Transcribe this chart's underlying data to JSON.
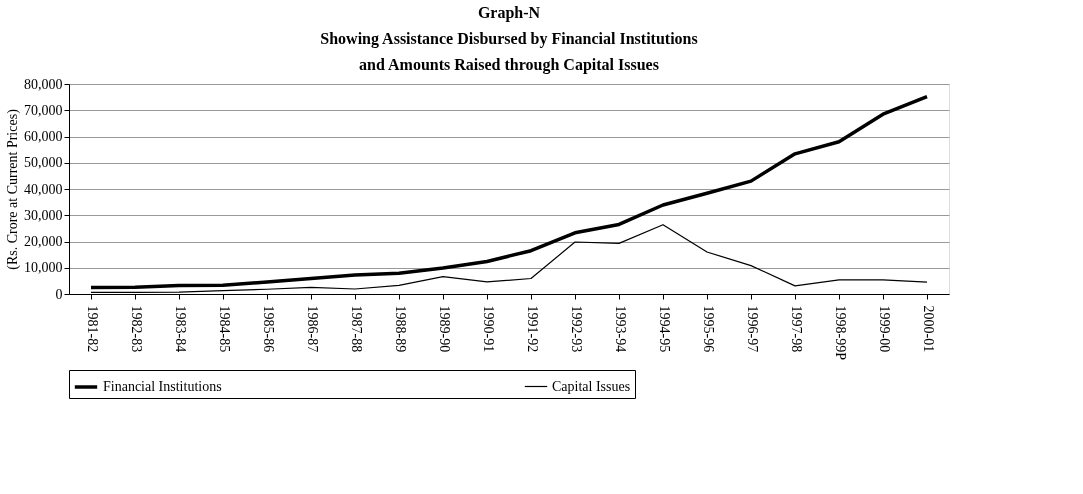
{
  "chart_data": {
    "type": "line",
    "title": [
      "Graph-N",
      "Showing Assistance Disbursed by Financial Institutions",
      "and Amounts Raised through Capital Issues"
    ],
    "ylabel": "(Rs. Crore at Current Prices)",
    "categories": [
      "1981-82",
      "1982-83",
      "1983-84",
      "1984-85",
      "1985-86",
      "1986-87",
      "1987-88",
      "1988-89",
      "1989-90",
      "1990-91",
      "1991-92",
      "1992-93",
      "1993-94",
      "1994-95",
      "1995-96",
      "1996-97",
      "1997-98",
      "1998-99P",
      "1999-00",
      "2000-01"
    ],
    "series": [
      {
        "name": "Financial Institutions",
        "color": "#000000",
        "values": [
          2500,
          2600,
          3200,
          3300,
          4600,
          5900,
          7200,
          7900,
          9900,
          12400,
          16500,
          23300,
          26500,
          33900,
          38400,
          43000,
          53400,
          58000,
          68500,
          75200
        ]
      },
      {
        "name": "Capital Issues",
        "color": "#000000",
        "values": [
          600,
          600,
          700,
          1300,
          1800,
          2500,
          1900,
          3300,
          6600,
          4600,
          5900,
          19800,
          19300,
          26400,
          16000,
          10800,
          3100,
          5400,
          5400,
          4500
        ]
      }
    ],
    "ylim": [
      0,
      80000
    ],
    "yticks": [
      {
        "value": 0,
        "label": "0"
      },
      {
        "value": 10000,
        "label": "10,000"
      },
      {
        "value": 20000,
        "label": "20,000"
      },
      {
        "value": 30000,
        "label": "30,000"
      },
      {
        "value": 40000,
        "label": "40,000"
      },
      {
        "value": 50000,
        "label": "50,000"
      },
      {
        "value": 60000,
        "label": "60,000"
      },
      {
        "value": 70000,
        "label": "70,000"
      },
      {
        "value": 80000,
        "label": "80,000"
      }
    ],
    "grid": "y",
    "legend": "bottom",
    "marker": "none",
    "line_style": "solid"
  }
}
